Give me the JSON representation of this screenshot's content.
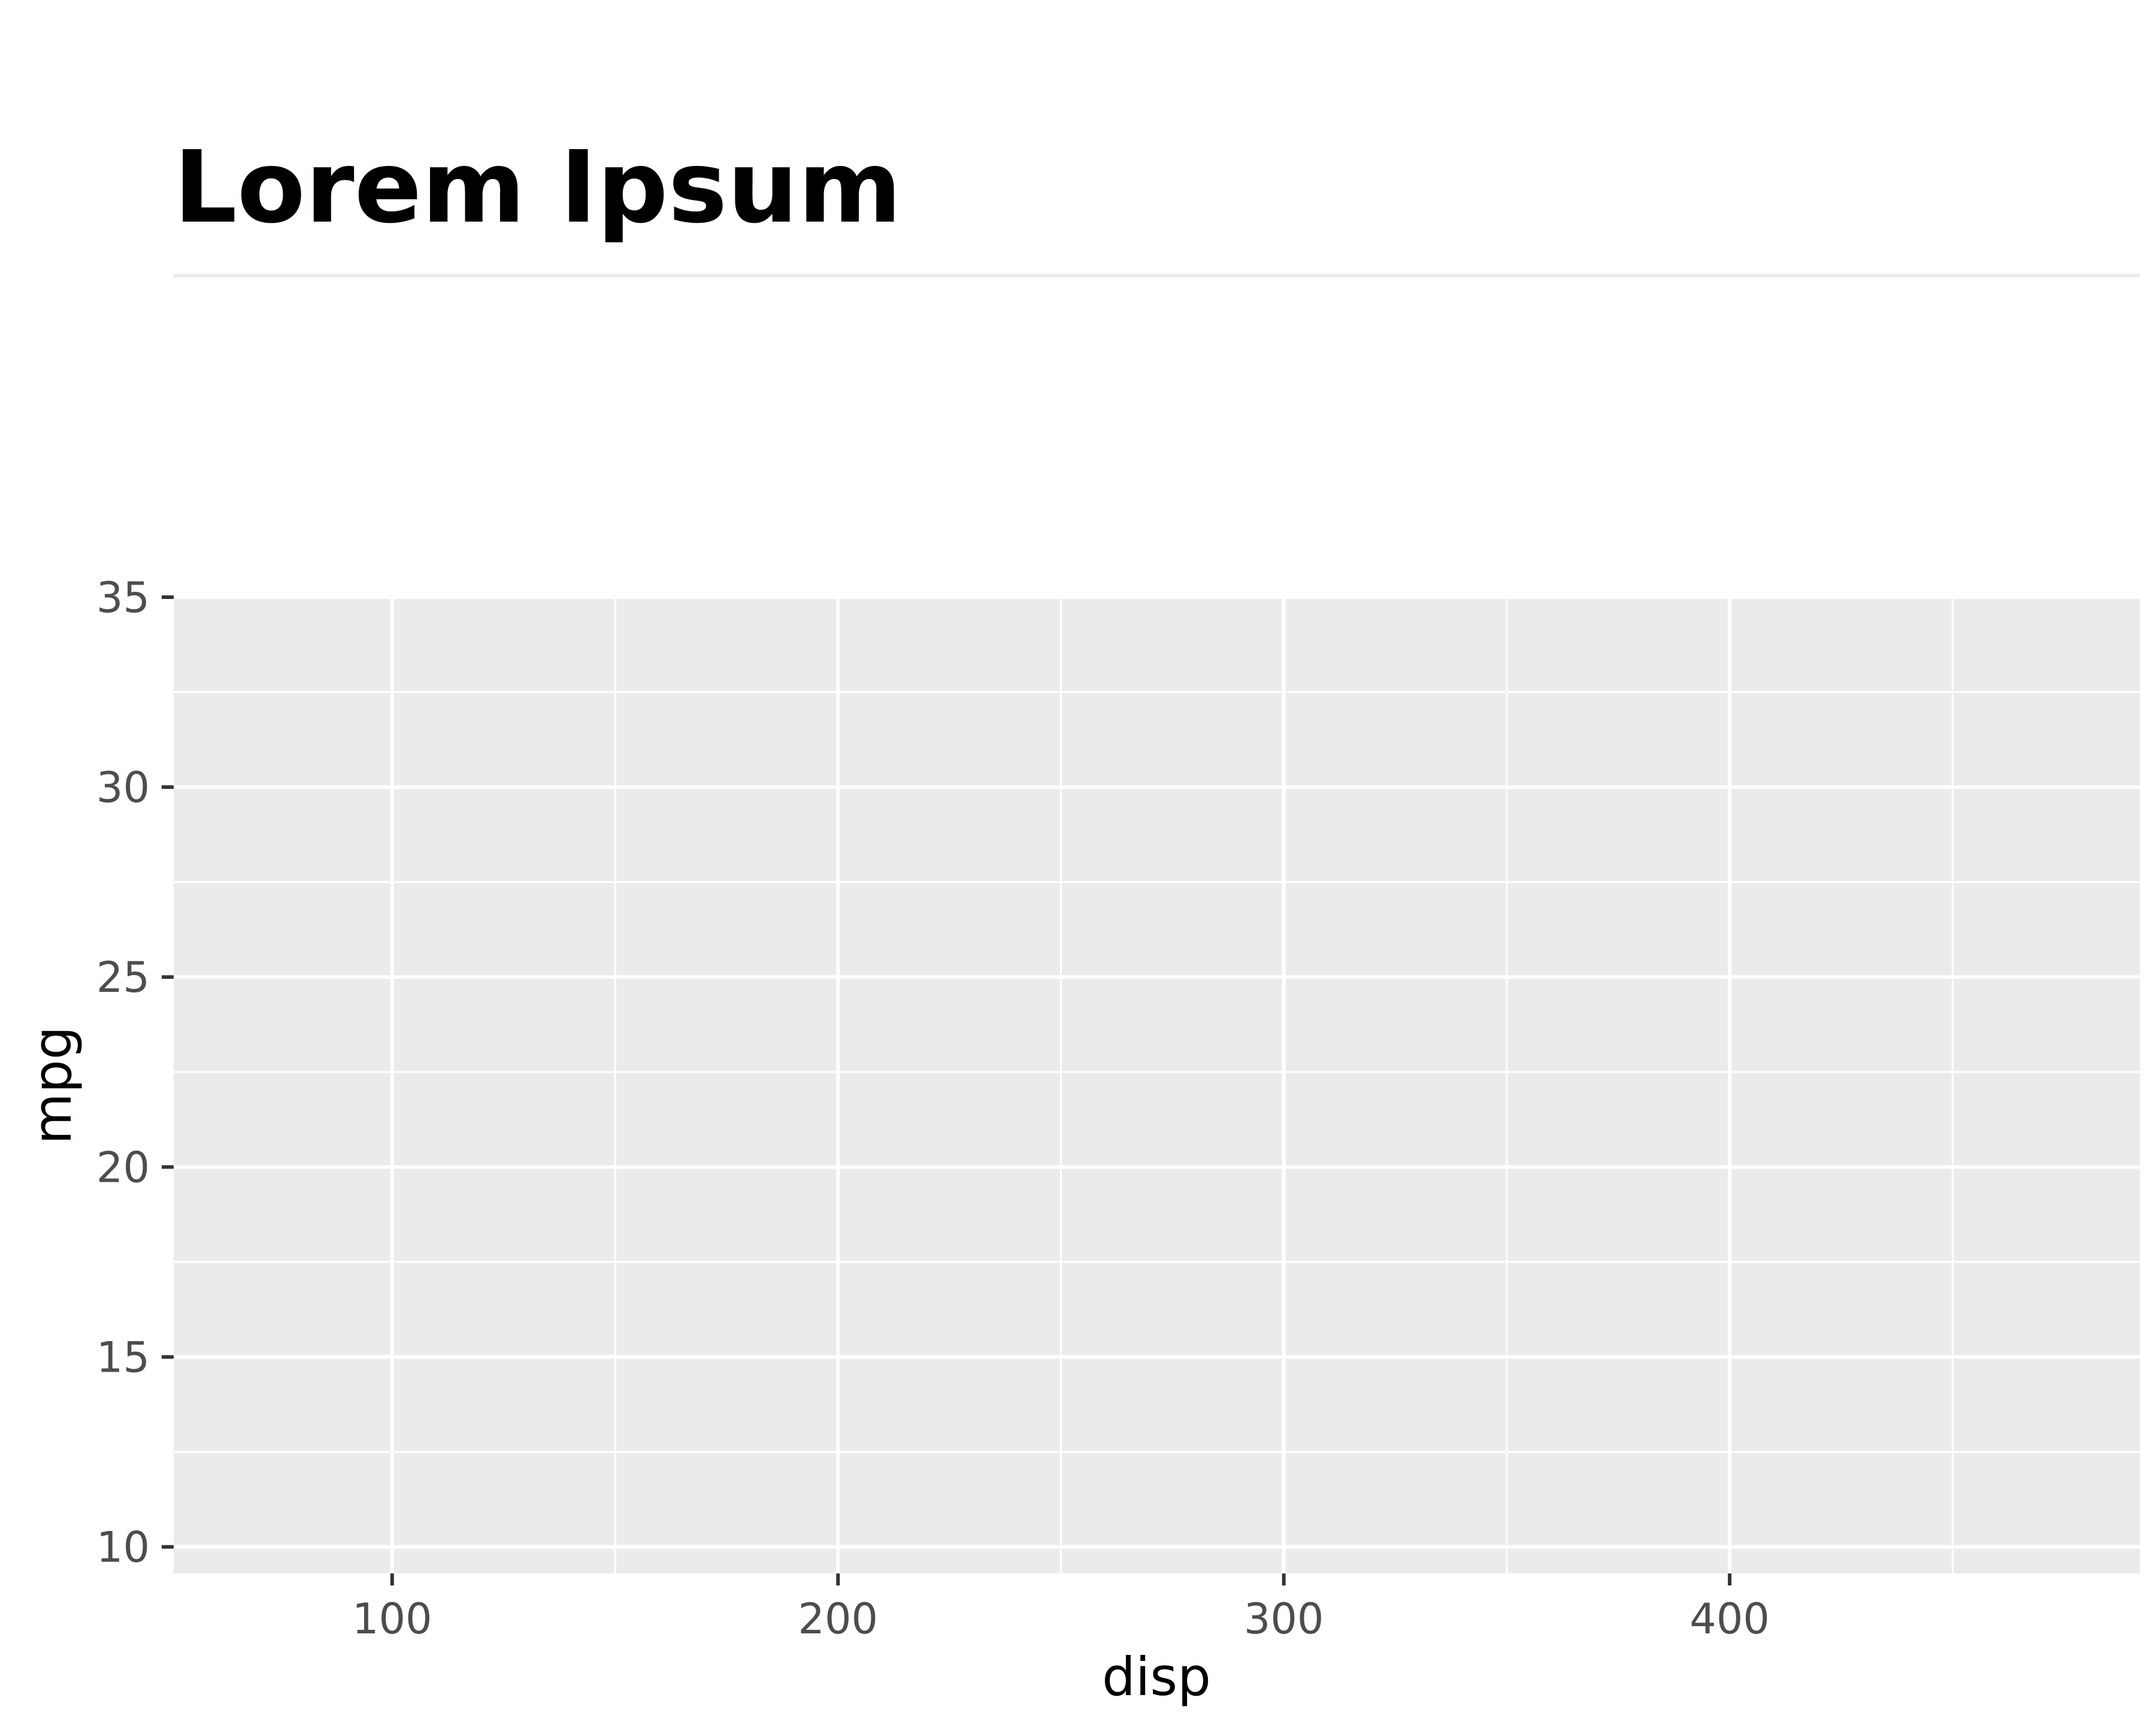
{
  "colors": {
    "background": "#ffffff",
    "panel": "#ebebeb",
    "grid_major": "#ffffff",
    "grid_minor": "#ffffff",
    "tick_label": "#4d4d4d",
    "tick_mark": "#333333",
    "title": "#000000",
    "title_rule": "#ebebeb"
  },
  "chart_data": {
    "type": "scatter",
    "title": "Lorem Ipsum",
    "xlabel": "disp",
    "ylabel": "mpg",
    "xlim": [
      51,
      492
    ],
    "ylim": [
      9.3,
      35.0
    ],
    "x_ticks": [
      100,
      200,
      300,
      400
    ],
    "x_tick_labels": [
      "100",
      "200",
      "300",
      "400"
    ],
    "x_minor_ticks": [
      150,
      250,
      350,
      450
    ],
    "y_ticks": [
      10,
      15,
      20,
      25,
      30,
      35
    ],
    "y_tick_labels": [
      "10",
      "15",
      "20",
      "25",
      "30",
      "35"
    ],
    "y_minor_ticks": [
      12.5,
      17.5,
      22.5,
      27.5,
      32.5
    ],
    "grid": true,
    "legend": "none",
    "series": [
      {
        "x": [],
        "y": []
      }
    ]
  }
}
